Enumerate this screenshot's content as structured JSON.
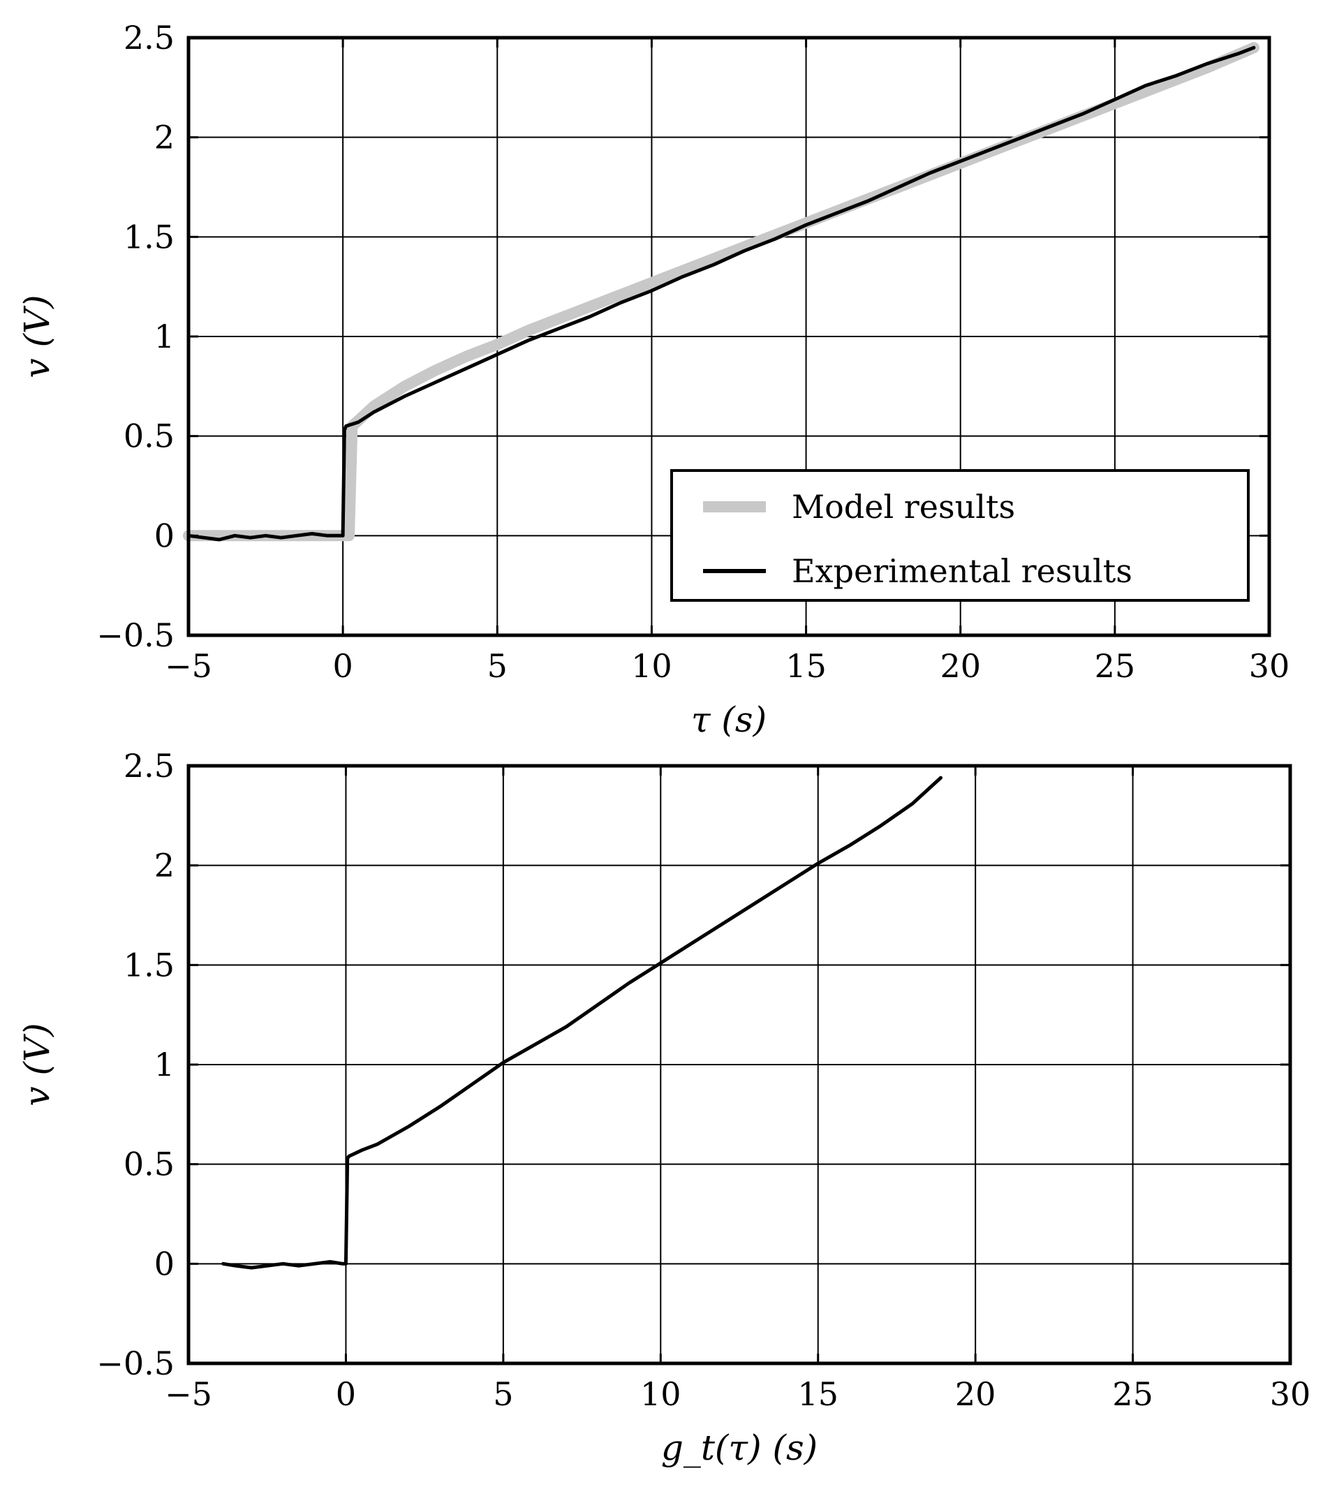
{
  "chart_data": [
    {
      "type": "line",
      "xlabel": "τ (s)",
      "ylabel": "v (V)",
      "xlim": [
        -5,
        30
      ],
      "ylim": [
        -0.5,
        2.5
      ],
      "x_ticks": [
        -5,
        0,
        5,
        10,
        15,
        20,
        25,
        30
      ],
      "x_tick_labels": [
        "−5",
        "0",
        "5",
        "10",
        "15",
        "20",
        "25",
        "30"
      ],
      "y_ticks": [
        -0.5,
        0,
        0.5,
        1,
        1.5,
        2,
        2.5
      ],
      "y_tick_labels": [
        "−0.5",
        "0",
        "0.5",
        "1",
        "1.5",
        "2",
        "2.5"
      ],
      "grid": true,
      "legend_position": "lower-right",
      "series": [
        {
          "name": "Model results",
          "color": "#c8c8c8",
          "x": [
            -5,
            0,
            0.2,
            0.3,
            1,
            2,
            3,
            4,
            5,
            6,
            7,
            8,
            9,
            10,
            11,
            12,
            13,
            14,
            15,
            16,
            17,
            18,
            19,
            20,
            21,
            22,
            23,
            24,
            25,
            26,
            27,
            28,
            29.5
          ],
          "y": [
            0,
            0,
            0,
            0.55,
            0.65,
            0.75,
            0.83,
            0.9,
            0.96,
            1.03,
            1.09,
            1.15,
            1.21,
            1.27,
            1.33,
            1.39,
            1.45,
            1.51,
            1.57,
            1.63,
            1.69,
            1.75,
            1.81,
            1.87,
            1.93,
            1.99,
            2.05,
            2.11,
            2.17,
            2.23,
            2.29,
            2.35,
            2.45
          ]
        },
        {
          "name": "Experimental results",
          "color": "#000000",
          "x": [
            -5,
            -4.5,
            -4,
            -3.5,
            -3,
            -2.5,
            -2,
            -1.5,
            -1,
            -0.5,
            0,
            0.05,
            0.1,
            0.5,
            1,
            2,
            3,
            4,
            5,
            6,
            7,
            8,
            9,
            10,
            11,
            12,
            13,
            14,
            15,
            16,
            17,
            18,
            19,
            20,
            21,
            22,
            23,
            24,
            25,
            26,
            27,
            28,
            29,
            29.5
          ],
          "y": [
            0,
            -0.01,
            -0.02,
            0,
            -0.01,
            0,
            -0.01,
            0,
            0.01,
            0,
            0,
            0.53,
            0.55,
            0.57,
            0.62,
            0.7,
            0.77,
            0.84,
            0.91,
            0.98,
            1.04,
            1.1,
            1.17,
            1.23,
            1.3,
            1.36,
            1.43,
            1.49,
            1.56,
            1.62,
            1.68,
            1.75,
            1.82,
            1.88,
            1.94,
            2.0,
            2.06,
            2.12,
            2.19,
            2.26,
            2.31,
            2.37,
            2.42,
            2.45
          ]
        }
      ]
    },
    {
      "type": "line",
      "xlabel": "g_t(τ) (s)",
      "ylabel": "v (V)",
      "xlim": [
        -5,
        30
      ],
      "ylim": [
        -0.5,
        2.5
      ],
      "x_ticks": [
        -5,
        0,
        5,
        10,
        15,
        20,
        25,
        30
      ],
      "x_tick_labels": [
        "−5",
        "0",
        "5",
        "10",
        "15",
        "20",
        "25",
        "30"
      ],
      "y_ticks": [
        -0.5,
        0,
        0.5,
        1,
        1.5,
        2,
        2.5
      ],
      "y_tick_labels": [
        "−0.5",
        "0",
        "0.5",
        "1",
        "1.5",
        "2",
        "2.5"
      ],
      "grid": true,
      "series": [
        {
          "color": "#000000",
          "x": [
            -3.9,
            -3.5,
            -3,
            -2.5,
            -2,
            -1.5,
            -1,
            -0.5,
            -0.1,
            0,
            0.05,
            0.1,
            0.5,
            1,
            2,
            3,
            4,
            5,
            6,
            7,
            8,
            9,
            10,
            11,
            12,
            13,
            14,
            15,
            16,
            17,
            18,
            18.9
          ],
          "y": [
            0,
            -0.01,
            -0.02,
            -0.01,
            0,
            -0.01,
            0,
            0.01,
            0,
            0,
            0.53,
            0.54,
            0.57,
            0.6,
            0.69,
            0.79,
            0.9,
            1.01,
            1.1,
            1.19,
            1.3,
            1.41,
            1.51,
            1.61,
            1.71,
            1.81,
            1.91,
            2.01,
            2.1,
            2.2,
            2.31,
            2.44
          ]
        }
      ]
    }
  ]
}
